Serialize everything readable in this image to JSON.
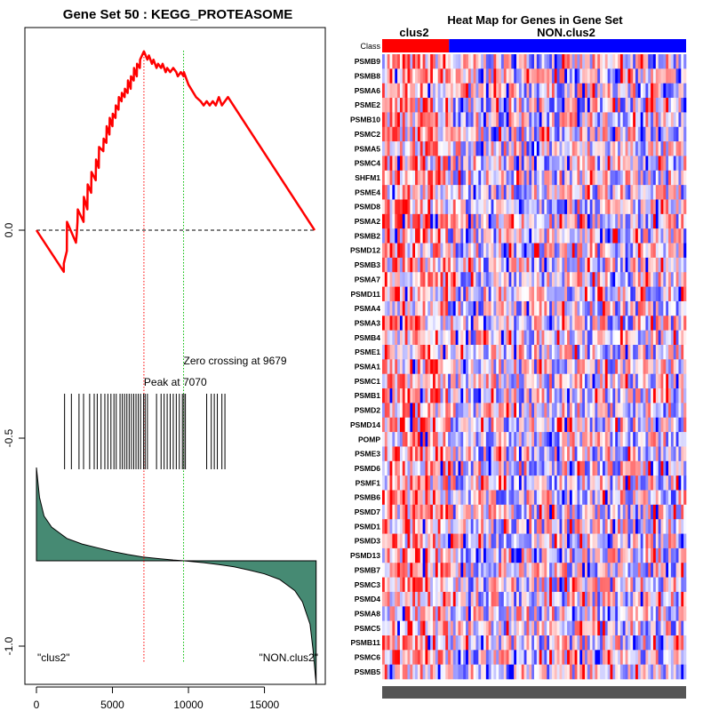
{
  "chart_data": [
    {
      "type": "line",
      "title": "Gene Set  50 : KEGG_PROTEASOME",
      "xlim": [
        0,
        18500
      ],
      "ylim": [
        -1.05,
        0.45
      ],
      "x_ticks": [
        0,
        5000,
        10000,
        15000
      ],
      "x_tick_labels": [
        "0",
        "5000",
        "10000",
        "15000"
      ],
      "y_ticks": [
        0.0,
        -0.5,
        -1.0
      ],
      "y_tick_labels": [
        "0.0",
        "-0.5",
        "-1.0"
      ],
      "colors": {
        "es_line": "#ff0000",
        "peak_line": "#ff0000",
        "zero_line": "#00bb00",
        "ranked_fill": "#468a73"
      },
      "running_es": {
        "x": [
          0,
          1800,
          1801,
          2000,
          2010,
          2600,
          2650,
          2700,
          2720,
          3100,
          3120,
          3350,
          3370,
          3600,
          3620,
          3900,
          3920,
          4100,
          4120,
          4400,
          4420,
          4600,
          4620,
          4800,
          4820,
          5000,
          5020,
          5200,
          5220,
          5400,
          5420,
          5600,
          5620,
          5800,
          5820,
          6000,
          6020,
          6200,
          6220,
          6400,
          6420,
          6600,
          6620,
          6800,
          6820,
          7070,
          7300,
          7400,
          7600,
          7700,
          7900,
          8000,
          8200,
          8300,
          8500,
          8600,
          8800,
          9000,
          9200,
          9300,
          9500,
          9680,
          9700,
          10000,
          10500,
          10800,
          11000,
          11200,
          11400,
          11600,
          11800,
          12000,
          12200,
          12400,
          12600,
          18300
        ],
        "y": [
          0.0,
          -0.1,
          -0.08,
          -0.05,
          0.02,
          -0.03,
          -0.01,
          0.02,
          0.05,
          0.02,
          0.08,
          0.05,
          0.11,
          0.09,
          0.14,
          0.12,
          0.17,
          0.15,
          0.2,
          0.19,
          0.22,
          0.21,
          0.25,
          0.23,
          0.27,
          0.25,
          0.28,
          0.27,
          0.3,
          0.29,
          0.32,
          0.31,
          0.33,
          0.32,
          0.34,
          0.33,
          0.36,
          0.34,
          0.37,
          0.36,
          0.39,
          0.37,
          0.4,
          0.39,
          0.41,
          0.43,
          0.41,
          0.42,
          0.4,
          0.41,
          0.39,
          0.4,
          0.39,
          0.4,
          0.38,
          0.39,
          0.38,
          0.39,
          0.38,
          0.37,
          0.38,
          0.37,
          0.38,
          0.35,
          0.32,
          0.31,
          0.3,
          0.31,
          0.3,
          0.31,
          0.3,
          0.32,
          0.3,
          0.31,
          0.32,
          0.0
        ]
      },
      "hit_positions": [
        1850,
        2300,
        2800,
        3100,
        3500,
        3800,
        4000,
        4250,
        4500,
        4700,
        4900,
        5100,
        5250,
        5500,
        5650,
        5800,
        5950,
        6100,
        6250,
        6400,
        6550,
        6700,
        6850,
        7050,
        7150,
        7300,
        7900,
        8200,
        8400,
        8600,
        8800,
        9000,
        9200,
        9400,
        9600,
        9700,
        9800,
        11200,
        11500,
        11700,
        11900,
        12200,
        12400
      ],
      "ranked_metric": {
        "x": [
          0,
          200,
          500,
          1000,
          2000,
          3000,
          4000,
          5000,
          6000,
          7000,
          8000,
          9000,
          9700,
          11000,
          12000,
          13000,
          14000,
          15000,
          16000,
          17000,
          17500,
          18000,
          18200,
          18400
        ],
        "y": [
          0.25,
          0.17,
          0.12,
          0.09,
          0.06,
          0.045,
          0.035,
          0.025,
          0.017,
          0.01,
          0.006,
          0.002,
          0.0,
          -0.005,
          -0.01,
          -0.016,
          -0.025,
          -0.035,
          -0.05,
          -0.08,
          -0.11,
          -0.17,
          -0.24,
          -0.33
        ],
        "baseline": 0.0
      },
      "peak": {
        "x": 7070,
        "label": "Peak at 7070"
      },
      "zero_crossing": {
        "x": 9679,
        "label": "Zero crossing at 9679"
      },
      "class_labels": {
        "left": "\"clus2\"",
        "right": "\"NON.clus2\""
      }
    },
    {
      "type": "heatmap",
      "title": "Heat Map for Genes in Gene Set",
      "class_row_label": "Class",
      "classes": [
        {
          "name": "clus2",
          "color": "#ff0000",
          "fraction": 0.22
        },
        {
          "name": "NON.clus2",
          "color": "#0000ff",
          "fraction": 0.78
        }
      ],
      "genes": [
        "PSMB9",
        "PSMB8",
        "PSMA6",
        "PSME2",
        "PSMB10",
        "PSMC2",
        "PSMA5",
        "PSMC4",
        "SHFM1",
        "PSME4",
        "PSMD8",
        "PSMA2",
        "PSMB2",
        "PSMD12",
        "PSMB3",
        "PSMA7",
        "PSMD11",
        "PSMA4",
        "PSMA3",
        "PSMB4",
        "PSME1",
        "PSMA1",
        "PSMC1",
        "PSMB1",
        "PSMD2",
        "PSMD14",
        "POMP",
        "PSME3",
        "PSMD6",
        "PSMF1",
        "PSMB6",
        "PSMD7",
        "PSMD1",
        "PSMD3",
        "PSMD13",
        "PSMB7",
        "PSMC3",
        "PSMD4",
        "PSMA8",
        "PSMC5",
        "PSMB11",
        "PSMC6",
        "PSMB5"
      ],
      "color_scale": {
        "low": "#0000ff",
        "mid": "#ffffff",
        "high": "#ff0000"
      }
    }
  ]
}
